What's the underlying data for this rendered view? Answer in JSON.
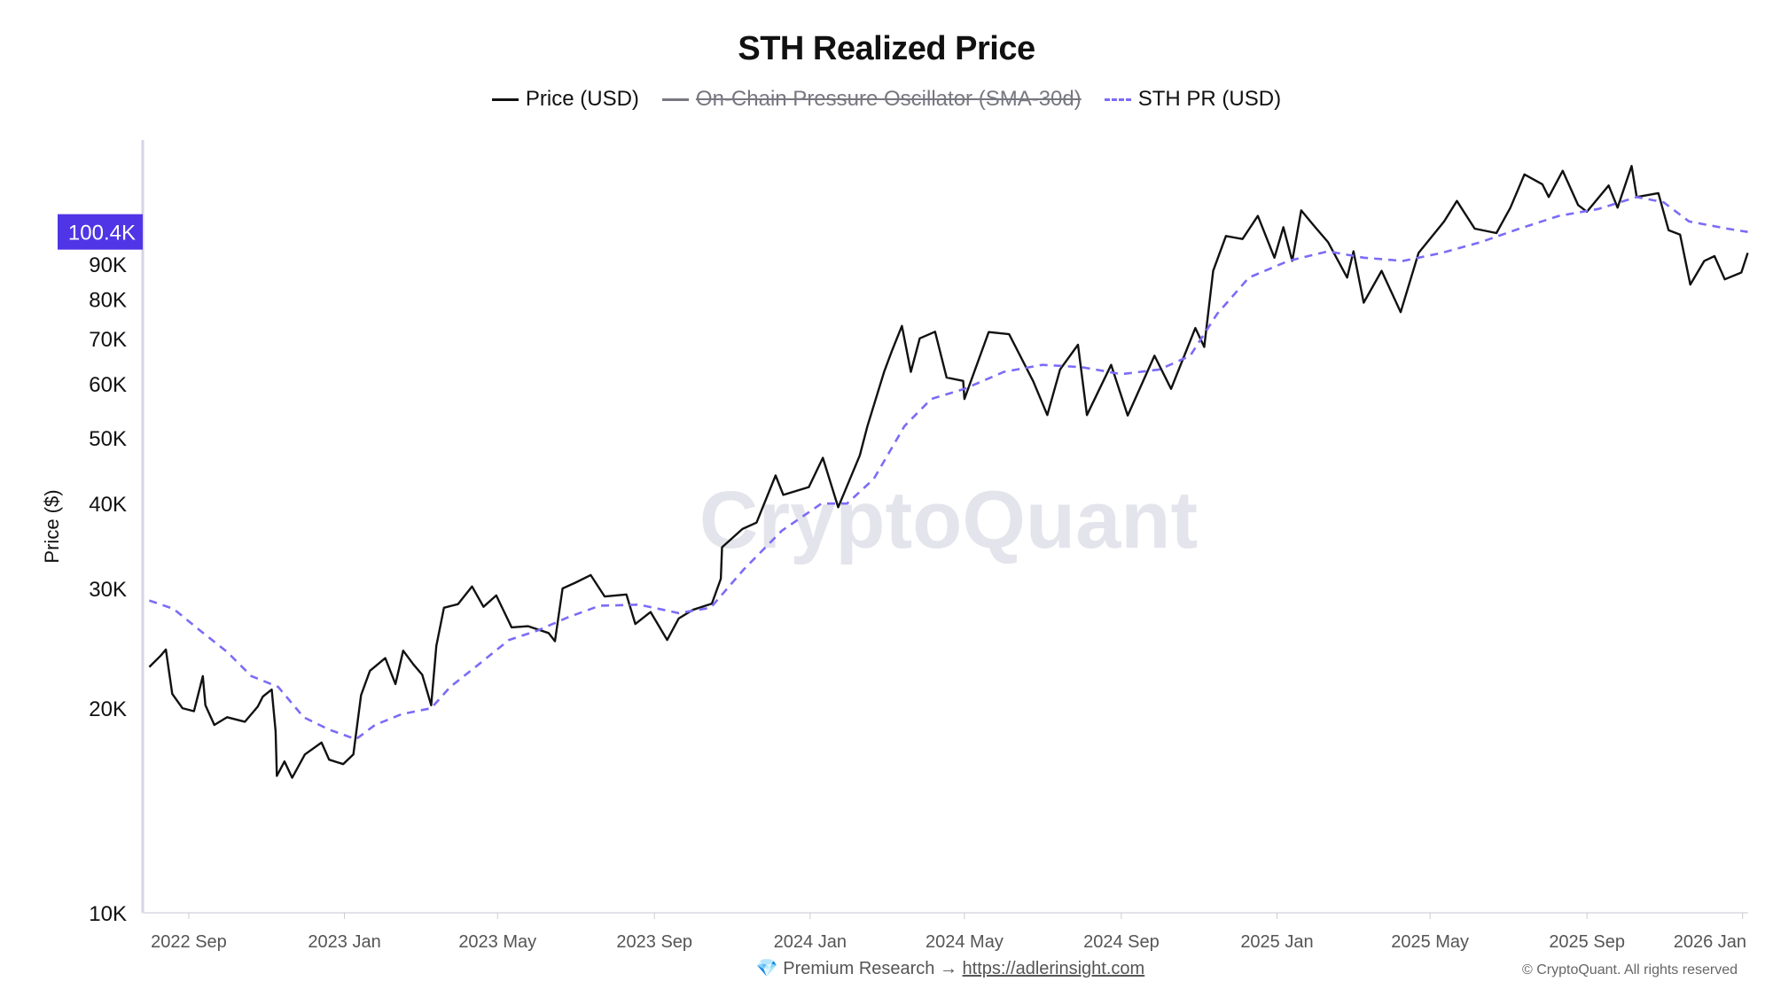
{
  "chart_data": {
    "type": "line",
    "title": "STH Realized Price",
    "ylabel": "Price ($)",
    "xlabel": "",
    "yscale": "log",
    "ylim": [
      10000,
      175000
    ],
    "xlim": [
      "2022-08-01",
      "2026-01-08"
    ],
    "grid": false,
    "legend_position": "top",
    "watermark": "CryptoQuant",
    "highlight_label": {
      "value": 100400,
      "text": "100.4K",
      "color": "#4f35e6"
    },
    "yticks": [
      {
        "value": 10000,
        "label": "10K"
      },
      {
        "value": 20000,
        "label": "20K"
      },
      {
        "value": 30000,
        "label": "30K"
      },
      {
        "value": 40000,
        "label": "40K"
      },
      {
        "value": 50000,
        "label": "50K"
      },
      {
        "value": 60000,
        "label": "60K"
      },
      {
        "value": 70000,
        "label": "70K"
      },
      {
        "value": 80000,
        "label": "80K"
      },
      {
        "value": 90000,
        "label": "90K"
      }
    ],
    "xticks": [
      {
        "date": "2022-09-01",
        "label": "2022 Sep"
      },
      {
        "date": "2023-01-01",
        "label": "2023 Jan"
      },
      {
        "date": "2023-05-01",
        "label": "2023 May"
      },
      {
        "date": "2023-09-01",
        "label": "2023 Sep"
      },
      {
        "date": "2024-01-01",
        "label": "2024 Jan"
      },
      {
        "date": "2024-05-01",
        "label": "2024 May"
      },
      {
        "date": "2024-09-01",
        "label": "2024 Sep"
      },
      {
        "date": "2025-01-01",
        "label": "2025 Jan"
      },
      {
        "date": "2025-05-01",
        "label": "2025 May"
      },
      {
        "date": "2025-09-01",
        "label": "2025 Sep"
      },
      {
        "date": "2026-01-01",
        "label": "2026 Jan"
      }
    ],
    "series": [
      {
        "name": "Price (USD)",
        "color": "#111111",
        "style": "solid",
        "visible": true,
        "points": [
          [
            "2022-08-01",
            23000
          ],
          [
            "2022-08-10",
            23900
          ],
          [
            "2022-08-14",
            24400
          ],
          [
            "2022-08-19",
            21000
          ],
          [
            "2022-08-27",
            20000
          ],
          [
            "2022-09-05",
            19800
          ],
          [
            "2022-09-12",
            22300
          ],
          [
            "2022-09-14",
            20200
          ],
          [
            "2022-09-21",
            18900
          ],
          [
            "2022-10-01",
            19400
          ],
          [
            "2022-10-15",
            19100
          ],
          [
            "2022-10-25",
            20100
          ],
          [
            "2022-10-29",
            20800
          ],
          [
            "2022-11-05",
            21300
          ],
          [
            "2022-11-08",
            18500
          ],
          [
            "2022-11-09",
            15900
          ],
          [
            "2022-11-15",
            16700
          ],
          [
            "2022-11-21",
            15800
          ],
          [
            "2022-12-01",
            17100
          ],
          [
            "2022-12-14",
            17800
          ],
          [
            "2022-12-20",
            16800
          ],
          [
            "2022-12-31",
            16550
          ],
          [
            "2023-01-08",
            17100
          ],
          [
            "2023-01-14",
            20900
          ],
          [
            "2023-01-21",
            22700
          ],
          [
            "2023-02-02",
            23700
          ],
          [
            "2023-02-10",
            21700
          ],
          [
            "2023-02-16",
            24300
          ],
          [
            "2023-02-24",
            23200
          ],
          [
            "2023-03-03",
            22400
          ],
          [
            "2023-03-10",
            20200
          ],
          [
            "2023-03-14",
            24700
          ],
          [
            "2023-03-20",
            28100
          ],
          [
            "2023-03-31",
            28450
          ],
          [
            "2023-04-11",
            30200
          ],
          [
            "2023-04-20",
            28200
          ],
          [
            "2023-04-30",
            29300
          ],
          [
            "2023-05-12",
            26300
          ],
          [
            "2023-05-25",
            26400
          ],
          [
            "2023-06-10",
            25800
          ],
          [
            "2023-06-15",
            25100
          ],
          [
            "2023-06-21",
            30000
          ],
          [
            "2023-07-01",
            30600
          ],
          [
            "2023-07-13",
            31400
          ],
          [
            "2023-07-24",
            29200
          ],
          [
            "2023-08-10",
            29400
          ],
          [
            "2023-08-17",
            26600
          ],
          [
            "2023-08-29",
            27700
          ],
          [
            "2023-09-11",
            25200
          ],
          [
            "2023-09-20",
            27100
          ],
          [
            "2023-10-01",
            27900
          ],
          [
            "2023-10-16",
            28500
          ],
          [
            "2023-10-23",
            31000
          ],
          [
            "2023-10-24",
            34500
          ],
          [
            "2023-11-09",
            36700
          ],
          [
            "2023-11-20",
            37500
          ],
          [
            "2023-12-05",
            44000
          ],
          [
            "2023-12-11",
            41200
          ],
          [
            "2023-12-31",
            42300
          ],
          [
            "2024-01-11",
            46700
          ],
          [
            "2024-01-23",
            39500
          ],
          [
            "2024-02-09",
            47100
          ],
          [
            "2024-02-15",
            52000
          ],
          [
            "2024-02-28",
            62500
          ],
          [
            "2024-03-05",
            67000
          ],
          [
            "2024-03-13",
            73000
          ],
          [
            "2024-03-20",
            62500
          ],
          [
            "2024-03-27",
            70000
          ],
          [
            "2024-04-08",
            71600
          ],
          [
            "2024-04-17",
            61300
          ],
          [
            "2024-04-30",
            60600
          ],
          [
            "2024-05-01",
            57000
          ],
          [
            "2024-05-20",
            71500
          ],
          [
            "2024-06-05",
            71000
          ],
          [
            "2024-06-24",
            60500
          ],
          [
            "2024-07-05",
            54000
          ],
          [
            "2024-07-15",
            63000
          ],
          [
            "2024-07-29",
            68500
          ],
          [
            "2024-08-05",
            54000
          ],
          [
            "2024-08-24",
            64000
          ],
          [
            "2024-09-06",
            53900
          ],
          [
            "2024-09-27",
            66000
          ],
          [
            "2024-10-10",
            59000
          ],
          [
            "2024-10-29",
            72500
          ],
          [
            "2024-11-05",
            68000
          ],
          [
            "2024-11-12",
            88000
          ],
          [
            "2024-11-22",
            99000
          ],
          [
            "2024-12-05",
            98000
          ],
          [
            "2024-12-17",
            106000
          ],
          [
            "2024-12-30",
            92000
          ],
          [
            "2025-01-06",
            102000
          ],
          [
            "2025-01-13",
            91000
          ],
          [
            "2025-01-20",
            108000
          ],
          [
            "2025-01-31",
            102000
          ],
          [
            "2025-02-10",
            97000
          ],
          [
            "2025-02-25",
            86000
          ],
          [
            "2025-03-02",
            94000
          ],
          [
            "2025-03-10",
            79000
          ],
          [
            "2025-03-24",
            88000
          ],
          [
            "2025-04-08",
            76500
          ],
          [
            "2025-04-22",
            93500
          ],
          [
            "2025-05-12",
            104000
          ],
          [
            "2025-05-22",
            111500
          ],
          [
            "2025-06-05",
            101500
          ],
          [
            "2025-06-22",
            100000
          ],
          [
            "2025-07-03",
            109000
          ],
          [
            "2025-07-14",
            122000
          ],
          [
            "2025-07-28",
            118000
          ],
          [
            "2025-08-02",
            113000
          ],
          [
            "2025-08-13",
            123500
          ],
          [
            "2025-08-25",
            110000
          ],
          [
            "2025-09-01",
            107500
          ],
          [
            "2025-09-18",
            117500
          ],
          [
            "2025-09-25",
            109000
          ],
          [
            "2025-10-06",
            125500
          ],
          [
            "2025-10-10",
            113000
          ],
          [
            "2025-10-27",
            114500
          ],
          [
            "2025-11-04",
            101000
          ],
          [
            "2025-11-13",
            99500
          ],
          [
            "2025-11-21",
            84000
          ],
          [
            "2025-12-02",
            91000
          ],
          [
            "2025-12-10",
            92500
          ],
          [
            "2025-12-18",
            85500
          ],
          [
            "2025-12-31",
            87500
          ],
          [
            "2026-01-05",
            93500
          ]
        ]
      },
      {
        "name": "On-Chain Pressure Oscillator (SMA-30d)",
        "color": "#777780",
        "style": "solid",
        "visible": false,
        "points": []
      },
      {
        "name": "STH PR (USD)",
        "color": "#7b6cf6",
        "style": "dashed",
        "visible": true,
        "points": [
          [
            "2022-08-01",
            28800
          ],
          [
            "2022-08-20",
            28000
          ],
          [
            "2022-09-10",
            26000
          ],
          [
            "2022-10-01",
            24200
          ],
          [
            "2022-10-20",
            22300
          ],
          [
            "2022-11-10",
            21500
          ],
          [
            "2022-11-30",
            19400
          ],
          [
            "2022-12-20",
            18600
          ],
          [
            "2023-01-10",
            18000
          ],
          [
            "2023-01-25",
            18900
          ],
          [
            "2023-02-15",
            19600
          ],
          [
            "2023-03-10",
            20000
          ],
          [
            "2023-03-25",
            21500
          ],
          [
            "2023-04-15",
            23100
          ],
          [
            "2023-05-10",
            25200
          ],
          [
            "2023-06-01",
            26000
          ],
          [
            "2023-06-25",
            27200
          ],
          [
            "2023-07-20",
            28300
          ],
          [
            "2023-08-20",
            28400
          ],
          [
            "2023-09-20",
            27600
          ],
          [
            "2023-10-15",
            28100
          ],
          [
            "2023-11-10",
            32000
          ],
          [
            "2023-12-10",
            36500
          ],
          [
            "2024-01-10",
            40000
          ],
          [
            "2024-01-30",
            40000
          ],
          [
            "2024-02-20",
            43500
          ],
          [
            "2024-03-15",
            52000
          ],
          [
            "2024-04-05",
            57000
          ],
          [
            "2024-05-01",
            59000
          ],
          [
            "2024-06-01",
            62500
          ],
          [
            "2024-07-01",
            64000
          ],
          [
            "2024-08-01",
            63500
          ],
          [
            "2024-09-01",
            62000
          ],
          [
            "2024-10-01",
            63000
          ],
          [
            "2024-10-25",
            66000
          ],
          [
            "2024-11-15",
            76000
          ],
          [
            "2024-12-10",
            86000
          ],
          [
            "2025-01-10",
            91000
          ],
          [
            "2025-02-10",
            94000
          ],
          [
            "2025-03-10",
            92000
          ],
          [
            "2025-04-10",
            91000
          ],
          [
            "2025-05-10",
            93500
          ],
          [
            "2025-06-10",
            97000
          ],
          [
            "2025-07-10",
            101500
          ],
          [
            "2025-08-10",
            106000
          ],
          [
            "2025-09-10",
            108500
          ],
          [
            "2025-10-10",
            113000
          ],
          [
            "2025-10-31",
            111000
          ],
          [
            "2025-11-20",
            104000
          ],
          [
            "2025-12-20",
            101500
          ],
          [
            "2026-01-05",
            100400
          ]
        ]
      }
    ]
  },
  "footer": {
    "premium_icon": "gem-icon",
    "premium_text": "Premium Research →",
    "premium_link": "https://adlerinsight.com",
    "copyright": "© CryptoQuant. All rights reserved"
  }
}
